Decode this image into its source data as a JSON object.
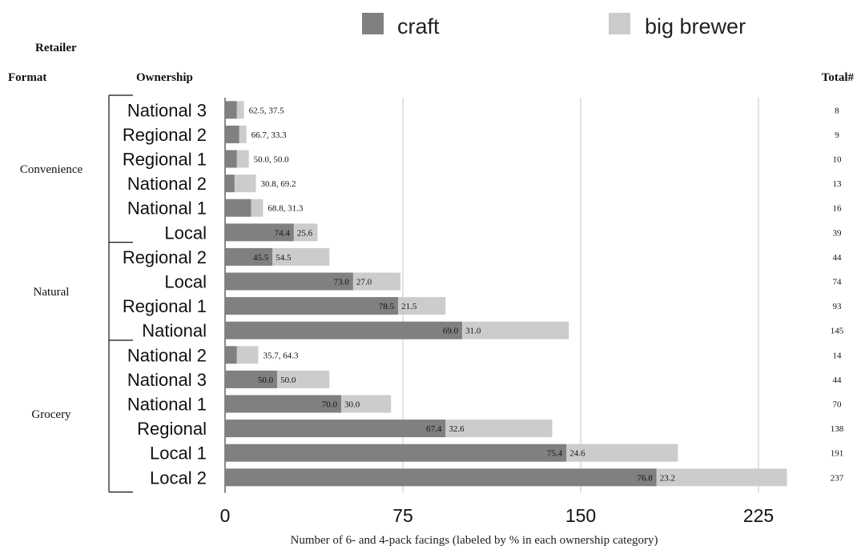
{
  "chart_data": {
    "type": "bar",
    "stacked": true,
    "orientation": "horizontal",
    "legend": {
      "placement": "top",
      "entries": [
        {
          "name": "craft",
          "color": "#808080"
        },
        {
          "name": "big brewer",
          "color": "#cccccc"
        }
      ]
    },
    "headers": {
      "retailer_format_line1": "Retailer",
      "retailer_format_line2": "Format",
      "ownership": "Ownership",
      "total": "Total#"
    },
    "xlabel": "Number of 6- and 4-pack facings (labeled by % in each ownership category)",
    "xlim": [
      0,
      240
    ],
    "xticks": [
      0,
      75,
      150,
      225
    ],
    "grid": "vertical",
    "groups": [
      {
        "format": "Convenience",
        "rows": [
          {
            "ownership": "National 3",
            "total": 8,
            "craft_pct": "62.5",
            "big_pct": "37.5",
            "label_mode": "outside"
          },
          {
            "ownership": "Regional 2",
            "total": 9,
            "craft_pct": "66.7",
            "big_pct": "33.3",
            "label_mode": "outside"
          },
          {
            "ownership": "Regional 1",
            "total": 10,
            "craft_pct": "50.0",
            "big_pct": "50.0",
            "label_mode": "outside"
          },
          {
            "ownership": "National 2",
            "total": 13,
            "craft_pct": "30.8",
            "big_pct": "69.2",
            "label_mode": "outside"
          },
          {
            "ownership": "National 1",
            "total": 16,
            "craft_pct": "68.8",
            "big_pct": "31.3",
            "label_mode": "outside"
          },
          {
            "ownership": "Local",
            "total": 39,
            "craft_pct": "74.4",
            "big_pct": "25.6",
            "label_mode": "inside"
          }
        ]
      },
      {
        "format": "Natural",
        "rows": [
          {
            "ownership": "Regional 2",
            "total": 44,
            "craft_pct": "45.5",
            "big_pct": "54.5",
            "label_mode": "inside"
          },
          {
            "ownership": "Local",
            "total": 74,
            "craft_pct": "73.0",
            "big_pct": "27.0",
            "label_mode": "inside"
          },
          {
            "ownership": "Regional 1",
            "total": 93,
            "craft_pct": "78.5",
            "big_pct": "21.5",
            "label_mode": "inside"
          },
          {
            "ownership": "National",
            "total": 145,
            "craft_pct": "69.0",
            "big_pct": "31.0",
            "label_mode": "inside"
          }
        ]
      },
      {
        "format": "Grocery",
        "rows": [
          {
            "ownership": "National 2",
            "total": 14,
            "craft_pct": "35.7",
            "big_pct": "64.3",
            "label_mode": "outside"
          },
          {
            "ownership": "National 3",
            "total": 44,
            "craft_pct": "50.0",
            "big_pct": "50.0",
            "label_mode": "inside"
          },
          {
            "ownership": "National 1",
            "total": 70,
            "craft_pct": "70.0",
            "big_pct": "30.0",
            "label_mode": "inside"
          },
          {
            "ownership": "Regional",
            "total": 138,
            "craft_pct": "67.4",
            "big_pct": "32.6",
            "label_mode": "inside"
          },
          {
            "ownership": "Local 1",
            "total": 191,
            "craft_pct": "75.4",
            "big_pct": "24.6",
            "label_mode": "inside"
          },
          {
            "ownership": "Local 2",
            "total": 237,
            "craft_pct": "76.8",
            "big_pct": "23.2",
            "label_mode": "inside"
          }
        ]
      }
    ]
  }
}
